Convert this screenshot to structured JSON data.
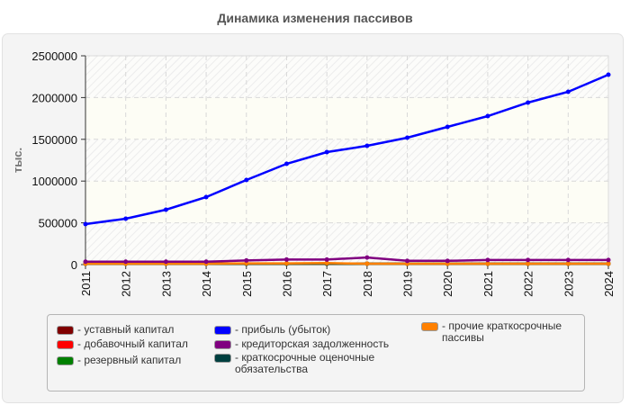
{
  "title": "Динамика изменения пассивов",
  "chart_data": {
    "type": "line",
    "title": "Динамика изменения пассивов",
    "xlabel": "",
    "ylabel": "тыс.",
    "ylim": [
      0,
      2500000
    ],
    "yticks": [
      "0",
      "500000",
      "1000000",
      "1500000",
      "2000000",
      "2500000"
    ],
    "grid": true,
    "legend_position": "bottom",
    "x": [
      "2011",
      "2012",
      "2013",
      "2014",
      "2015",
      "2016",
      "2017",
      "2018",
      "2019",
      "2020",
      "2021",
      "2022",
      "2023",
      "2024"
    ],
    "series": [
      {
        "name": "уставный капитал",
        "color": "#800000",
        "values": [
          100,
          100,
          100,
          100,
          100,
          100,
          100,
          100,
          100,
          100,
          100,
          100,
          100,
          100
        ]
      },
      {
        "name": "добавочный капитал",
        "color": "#ff0000",
        "values": [
          0,
          0,
          0,
          0,
          0,
          0,
          0,
          0,
          0,
          0,
          0,
          0,
          0,
          0
        ]
      },
      {
        "name": "резервный капитал",
        "color": "#008000",
        "values": [
          0,
          0,
          0,
          0,
          0,
          0,
          0,
          0,
          0,
          0,
          0,
          0,
          0,
          0
        ]
      },
      {
        "name": "прибыль (убыток)",
        "color": "#0000ff",
        "values": [
          485000,
          550000,
          657000,
          808000,
          1013000,
          1207000,
          1347000,
          1422000,
          1519000,
          1649000,
          1778000,
          1940000,
          2069000,
          2274000
        ]
      },
      {
        "name": "кредиторская задолженность",
        "color": "#800080",
        "values": [
          35000,
          35000,
          35000,
          35000,
          50000,
          60000,
          60000,
          85000,
          45000,
          45000,
          55000,
          55000,
          55000,
          55000
        ]
      },
      {
        "name": "краткосрочные оценочные обязательства",
        "color": "#004040",
        "values": [
          0,
          0,
          0,
          0,
          8000,
          5000,
          5000,
          0,
          0,
          0,
          0,
          0,
          0,
          0
        ]
      },
      {
        "name": "прочие краткосрочные пассивы",
        "color": "#ff8000",
        "values": [
          5000,
          5000,
          5000,
          5000,
          15000,
          15000,
          18000,
          10000,
          10000,
          10000,
          10000,
          10000,
          10000,
          10000
        ]
      }
    ]
  },
  "legend": [
    {
      "label": "- уставный капитал",
      "color": "#800000"
    },
    {
      "label": "- добавочный капитал",
      "color": "#ff0000"
    },
    {
      "label": "- резервный капитал",
      "color": "#008000"
    },
    {
      "label": "- прибыль (убыток)",
      "color": "#0000ff"
    },
    {
      "label": "- кредиторская задолженность",
      "color": "#800080"
    },
    {
      "label": "- краткосрочные оценочные\nобязательства",
      "color": "#004040"
    },
    {
      "label": "- прочие краткосрочные\nпассивы",
      "color": "#ff8000"
    }
  ]
}
